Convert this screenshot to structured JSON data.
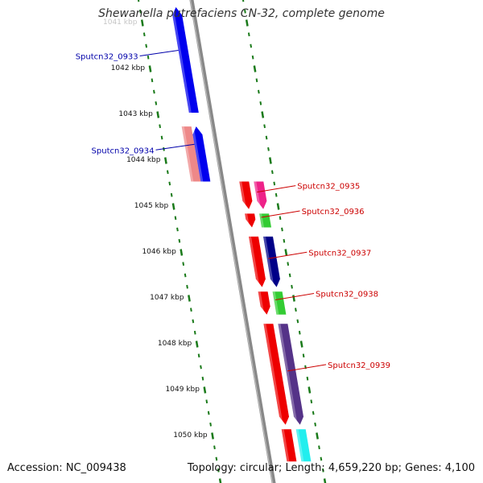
{
  "title": "Shewanella putrefaciens CN-32, complete genome",
  "footer": {
    "accession": "Accession: NC_009438",
    "summary": "Topology: circular; Length: 4,659,220 bp; Genes: 4,100"
  },
  "colors": {
    "backbone": "#888888",
    "tick_minor": "#1a7a1a",
    "forward_label": "#0000aa",
    "reverse_label": "#cc0000"
  },
  "scale": {
    "unit": "kbp",
    "ticks": [
      1041,
      1042,
      1043,
      1044,
      1045,
      1046,
      1047,
      1048,
      1049,
      1050
    ],
    "labels": [
      "1041 kbp",
      "1042 kbp",
      "1043 kbp",
      "1044 kbp",
      "1045 kbp",
      "1046 kbp",
      "1047 kbp",
      "1048 kbp",
      "1049 kbp",
      "1050 kbp"
    ]
  },
  "genes": [
    {
      "label": "Sputcn32_0933",
      "strand": "forward",
      "start_kbp": 1040.7,
      "end_kbp": 1043.0
    },
    {
      "label": "Sputcn32_0934",
      "strand": "forward",
      "start_kbp": 1043.3,
      "end_kbp": 1044.5
    },
    {
      "label": "Sputcn32_0935",
      "strand": "reverse",
      "start_kbp": 1044.5,
      "end_kbp": 1045.1
    },
    {
      "label": "Sputcn32_0936",
      "strand": "reverse",
      "start_kbp": 1045.2,
      "end_kbp": 1045.5
    },
    {
      "label": "Sputcn32_0937",
      "strand": "reverse",
      "start_kbp": 1045.7,
      "end_kbp": 1046.8
    },
    {
      "label": "Sputcn32_0938",
      "strand": "reverse",
      "start_kbp": 1046.9,
      "end_kbp": 1047.4
    },
    {
      "label": "Sputcn32_0939",
      "strand": "reverse",
      "start_kbp": 1047.6,
      "end_kbp": 1049.8
    },
    {
      "label": "",
      "strand": "reverse",
      "start_kbp": 1049.9,
      "end_kbp": 1050.6
    }
  ],
  "features": [
    {
      "track": "fwd_blast",
      "color": "#ee8888",
      "start_kbp": 1043.3,
      "end_kbp": 1044.5,
      "shape": "box"
    },
    {
      "track": "rev_blast",
      "color": "#ee0000",
      "start_kbp": 1044.5,
      "end_kbp": 1045.1,
      "shape": "arrow"
    },
    {
      "track": "rev_gene",
      "color": "#ee2288",
      "start_kbp": 1044.5,
      "end_kbp": 1045.1,
      "shape": "arrow"
    },
    {
      "track": "rev_blast",
      "color": "#ee0000",
      "start_kbp": 1045.2,
      "end_kbp": 1045.5,
      "shape": "arrow"
    },
    {
      "track": "rev_gene",
      "color": "#33cc33",
      "start_kbp": 1045.2,
      "end_kbp": 1045.5,
      "shape": "box"
    },
    {
      "track": "rev_blast",
      "color": "#ee0000",
      "start_kbp": 1045.7,
      "end_kbp": 1046.8,
      "shape": "arrow"
    },
    {
      "track": "rev_gene",
      "color": "#000088",
      "start_kbp": 1045.7,
      "end_kbp": 1046.8,
      "shape": "arrow"
    },
    {
      "track": "rev_blast",
      "color": "#ee0000",
      "start_kbp": 1046.9,
      "end_kbp": 1047.4,
      "shape": "arrow"
    },
    {
      "track": "rev_gene",
      "color": "#33cc33",
      "start_kbp": 1046.9,
      "end_kbp": 1047.4,
      "shape": "box"
    },
    {
      "track": "rev_blast",
      "color": "#ee0000",
      "start_kbp": 1047.6,
      "end_kbp": 1049.8,
      "shape": "arrow"
    },
    {
      "track": "rev_gene",
      "color": "#553388",
      "start_kbp": 1047.6,
      "end_kbp": 1049.8,
      "shape": "arrow"
    },
    {
      "track": "rev_blast",
      "color": "#ee0000",
      "start_kbp": 1049.9,
      "end_kbp": 1050.6,
      "shape": "box"
    },
    {
      "track": "rev_gene",
      "color": "#22eeee",
      "start_kbp": 1049.9,
      "end_kbp": 1050.6,
      "shape": "box"
    },
    {
      "track": "fwd_gene",
      "color": "#0000ee",
      "start_kbp": 1040.7,
      "end_kbp": 1043.0,
      "shape": "arrow"
    },
    {
      "track": "fwd_gene",
      "color": "#0000ee",
      "start_kbp": 1043.3,
      "end_kbp": 1044.5,
      "shape": "arrow"
    }
  ]
}
